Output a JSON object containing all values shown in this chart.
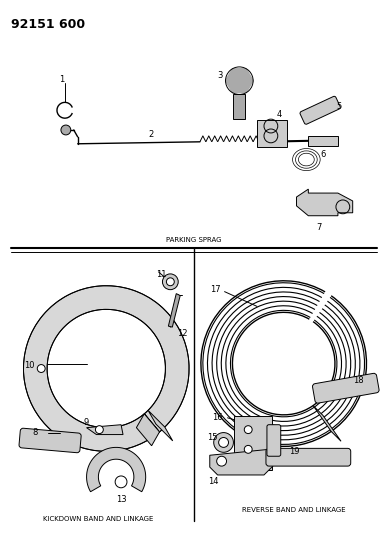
{
  "title": "92151 600",
  "background_color": "#ffffff",
  "line_color": "#000000",
  "fig_width": 3.88,
  "fig_height": 5.33,
  "dpi": 100,
  "parking_sprag_label": "PARKING SPRAG",
  "kickdown_label": "KICKDOWN BAND AND LINKAGE",
  "reverse_label": "REVERSE BAND AND LINKAGE",
  "gray_fill": "#aaaaaa",
  "light_gray": "#cccccc"
}
